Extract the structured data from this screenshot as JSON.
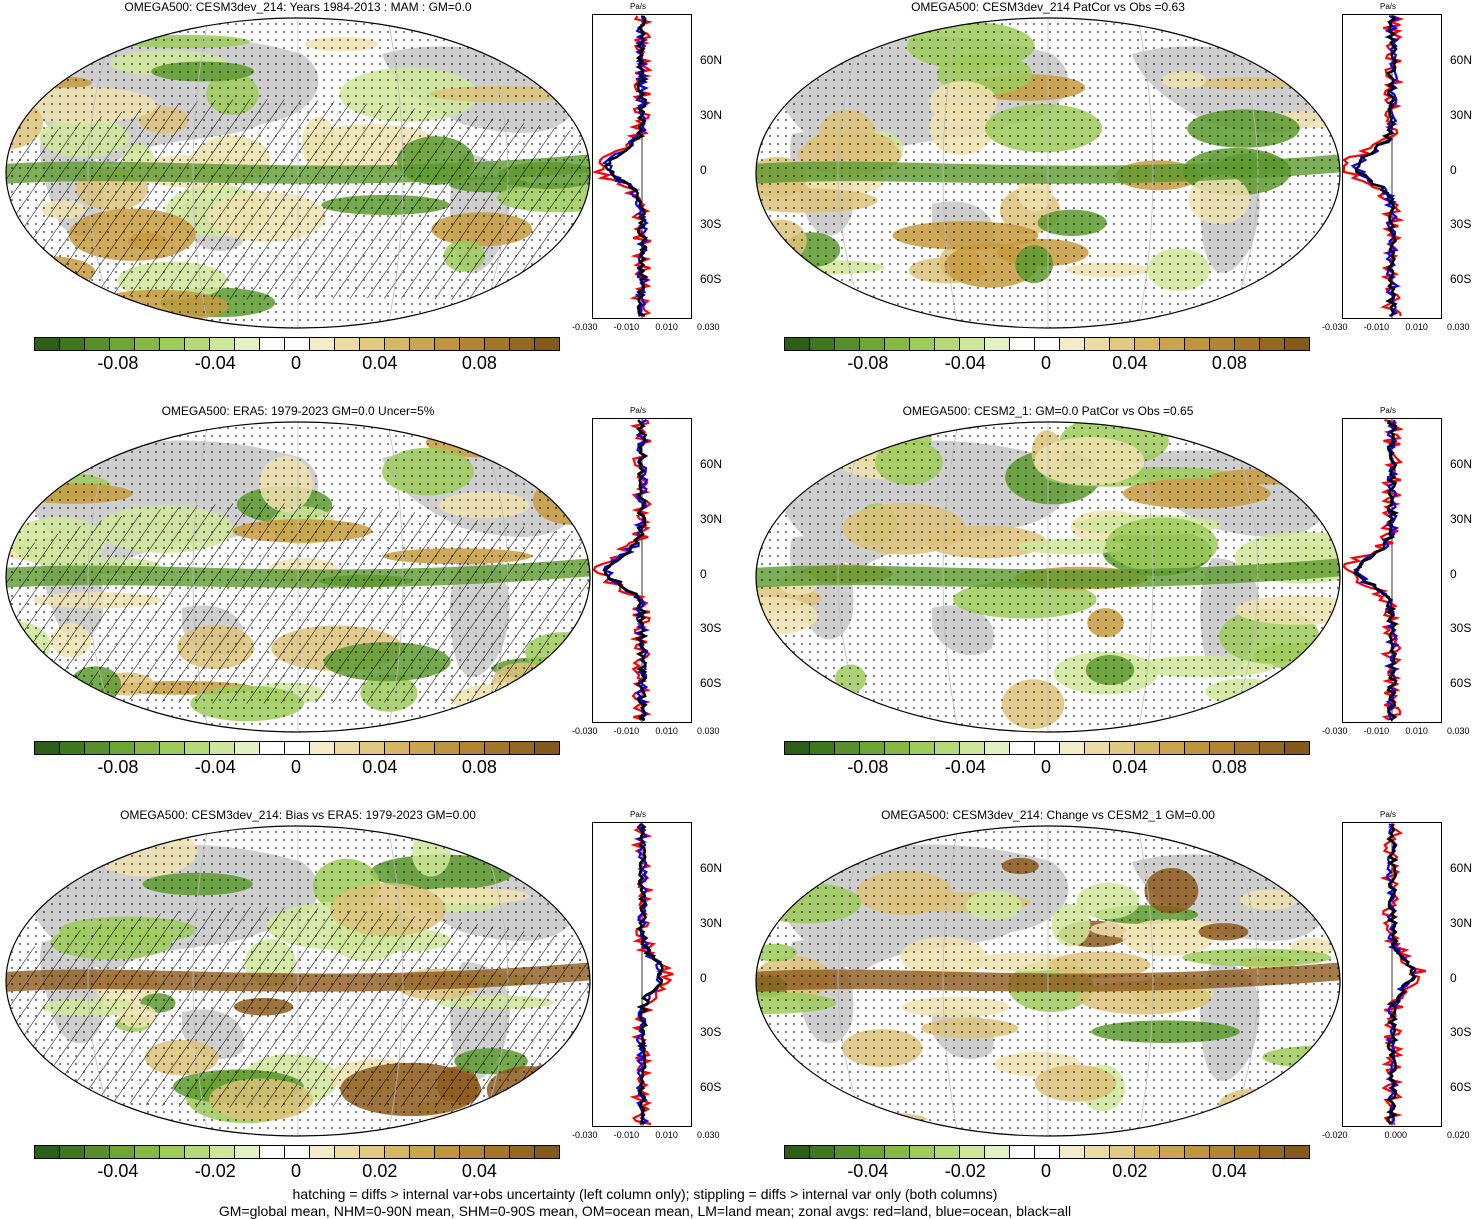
{
  "colors": {
    "green_dark": "#2e6a1a",
    "green_mid": "#5d9a2e",
    "green_light": "#9ecb5a",
    "green_pale": "#cfe79a",
    "white": "#ffffff",
    "tan_pale": "#f0e2b0",
    "tan_light": "#dcc27a",
    "tan_mid": "#c79b3e",
    "brown_dark": "#8e5a1c",
    "land_gray": "#cfcfcf",
    "line_red": "#ff0000",
    "line_blue": "#0000ff",
    "line_black": "#000000"
  },
  "colorbar_swatches": [
    "#2b5e17",
    "#3d7a1f",
    "#568f2b",
    "#6ea636",
    "#86b843",
    "#9ecb5a",
    "#b7d979",
    "#cfe79a",
    "#e4f1c3",
    "#ffffff",
    "#ffffff",
    "#f4ecc8",
    "#ecdca4",
    "#e1c983",
    "#d6b766",
    "#caa44e",
    "#bf943f",
    "#b28434",
    "#a4762a",
    "#956821",
    "#85591b"
  ],
  "panels": [
    {
      "title": "OMEGA500: CESM3dev_214: Years 1984-2013 : MAM : GM=0.0",
      "cb_labels": [
        "-0.08",
        "-0.04",
        "0",
        "0.04",
        "0.08"
      ],
      "z_unit": "Pa/s",
      "z_lat": [
        "60N",
        "30N",
        "0",
        "30S",
        "60S"
      ],
      "z_x": [
        "-0.030",
        "-0.010",
        "0.010",
        "0.030"
      ]
    },
    {
      "title": "OMEGA500: CESM3dev_214 PatCor vs Obs =0.63",
      "cb_labels": [
        "-0.08",
        "-0.04",
        "0",
        "0.04",
        "0.08"
      ],
      "z_unit": "Pa/s",
      "z_lat": [
        "60N",
        "30N",
        "0",
        "30S",
        "60S"
      ],
      "z_x": [
        "-0.030",
        "-0.010",
        "0.010",
        "0.030"
      ]
    },
    {
      "title": "OMEGA500: ERA5: 1979-2023 GM=0.0 Uncer=5%",
      "cb_labels": [
        "-0.08",
        "-0.04",
        "0",
        "0.04",
        "0.08"
      ],
      "z_unit": "Pa/s",
      "z_lat": [
        "60N",
        "30N",
        "0",
        "30S",
        "60S"
      ],
      "z_x": [
        "-0.030",
        "-0.010",
        "0.010",
        "0.030"
      ]
    },
    {
      "title": "OMEGA500: CESM2_1: GM=0.0 PatCor vs Obs =0.65",
      "cb_labels": [
        "-0.08",
        "-0.04",
        "0",
        "0.04",
        "0.08"
      ],
      "z_unit": "Pa/s",
      "z_lat": [
        "60N",
        "30N",
        "0",
        "30S",
        "60S"
      ],
      "z_x": [
        "-0.030",
        "-0.010",
        "0.010",
        "0.030"
      ]
    },
    {
      "title": "OMEGA500: CESM3dev_214: Bias vs ERA5: 1979-2023 GM=0.00",
      "cb_labels": [
        "-0.04",
        "-0.02",
        "0",
        "0.02",
        "0.04"
      ],
      "z_unit": "Pa/s",
      "z_lat": [
        "60N",
        "30N",
        "0",
        "30S",
        "60S"
      ],
      "z_x": [
        "-0.030",
        "-0.010",
        "0.010",
        "0.030"
      ]
    },
    {
      "title": "OMEGA500: CESM3dev_214: Change vs CESM2_1 GM=0.00",
      "cb_labels": [
        "-0.04",
        "-0.02",
        "0",
        "0.02",
        "0.04"
      ],
      "z_unit": "Pa/s",
      "z_lat": [
        "60N",
        "30N",
        "0",
        "30S",
        "60S"
      ],
      "z_x": [
        "-0.020",
        "0.000",
        "0.020"
      ]
    }
  ],
  "footer": {
    "line1": "hatching = diffs > internal var+obs uncertainty (left column only); stippling = diffs > internal var only (both columns)",
    "line2": "GM=global mean, NHM=0-90N mean, SHM=0-90S mean, OM=ocean mean, LM=land mean; zonal avgs: red=land, blue=ocean, black=all"
  }
}
